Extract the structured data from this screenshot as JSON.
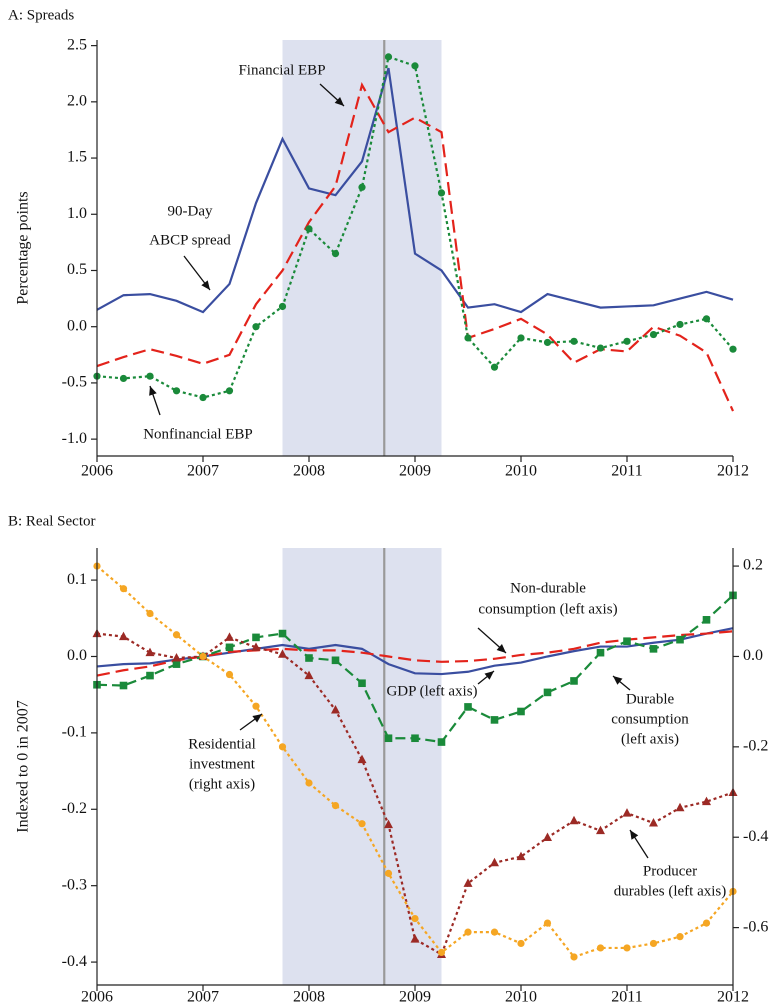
{
  "chart_data": [
    {
      "type": "line",
      "title": "A: Spreads",
      "y_label": "Percentage points",
      "x": [
        2006,
        2006.25,
        2006.5,
        2006.75,
        2007,
        2007.25,
        2007.5,
        2007.75,
        2008,
        2008.25,
        2008.5,
        2008.75,
        2009,
        2009.25,
        2009.5,
        2009.75,
        2010,
        2010.25,
        2010.5,
        2010.75,
        2011,
        2011.25,
        2011.5,
        2011.75,
        2012
      ],
      "xlim": [
        2006,
        2012
      ],
      "xticks": [
        2006,
        2007,
        2008,
        2009,
        2010,
        2011,
        2012
      ],
      "ylim": [
        -1.15,
        2.55
      ],
      "yticks": [
        {
          "value": -1,
          "label": "-1.0"
        },
        -0.5,
        {
          "value": 0,
          "label": "0.0"
        },
        0.5,
        {
          "value": 1,
          "label": "1.0"
        },
        1.5,
        {
          "value": 2,
          "label": "2.0"
        },
        2.5
      ],
      "shade": [
        2007.75,
        2009.25
      ],
      "vline": 2008.71,
      "series": [
        {
          "name": "90-Day ABCP spread",
          "color": "#3a4ea0",
          "dash": "solid",
          "marker": "none",
          "values": [
            0.15,
            0.28,
            0.29,
            0.23,
            0.13,
            0.38,
            1.1,
            1.67,
            1.23,
            1.17,
            1.47,
            2.3,
            0.65,
            0.5,
            0.17,
            0.2,
            0.13,
            0.29,
            0.23,
            0.17,
            0.18,
            0.19,
            0.25,
            0.31,
            0.24
          ]
        },
        {
          "name": "Financial EBP",
          "color": "#e3231b",
          "dash": "long",
          "marker": "none",
          "values": [
            -0.35,
            -0.27,
            -0.2,
            -0.26,
            -0.33,
            -0.25,
            0.2,
            0.5,
            0.93,
            1.25,
            2.15,
            1.73,
            1.86,
            1.73,
            -0.1,
            -0.02,
            0.07,
            -0.07,
            -0.32,
            -0.2,
            -0.22,
            0.0,
            -0.08,
            -0.23,
            -0.75
          ]
        },
        {
          "name": "Nonfinancial EBP",
          "color": "#1a8a3a",
          "dash": "dotted",
          "marker": "circle",
          "values": [
            -0.44,
            -0.46,
            -0.44,
            -0.57,
            -0.63,
            -0.57,
            0.0,
            0.18,
            0.87,
            0.65,
            1.24,
            2.4,
            2.32,
            1.19,
            -0.1,
            -0.36,
            -0.1,
            -0.14,
            -0.13,
            -0.19,
            -0.13,
            -0.07,
            0.02,
            0.07,
            -0.2
          ]
        }
      ],
      "annotations": [
        {
          "text": [
            "Financial EBP"
          ]
        },
        {
          "text": [
            "90-Day",
            "ABCP spread"
          ]
        },
        {
          "text": [
            "Nonfinancial EBP"
          ]
        }
      ]
    },
    {
      "type": "line",
      "title": "B: Real Sector",
      "y_label": "Indexed to 0 in 2007",
      "x": [
        2006,
        2006.25,
        2006.5,
        2006.75,
        2007,
        2007.25,
        2007.5,
        2007.75,
        2008,
        2008.25,
        2008.5,
        2008.75,
        2009,
        2009.25,
        2009.5,
        2009.75,
        2010,
        2010.25,
        2010.5,
        2010.75,
        2011,
        2011.25,
        2011.5,
        2011.75,
        2012
      ],
      "xlim": [
        2006,
        2012
      ],
      "xticks": [
        2006,
        2007,
        2008,
        2009,
        2010,
        2011,
        2012
      ],
      "ylim": [
        -0.43,
        0.142
      ],
      "yticks": [
        0.1,
        {
          "value": 0,
          "label": "0.0"
        },
        -0.1,
        -0.2,
        -0.3,
        -0.4
      ],
      "y2lim": [
        -0.727,
        0.24
      ],
      "y2ticks": [
        0.2,
        {
          "value": 0,
          "label": "0.0"
        },
        -0.2,
        -0.4,
        -0.6
      ],
      "shade": [
        2007.75,
        2009.25
      ],
      "vline": 2008.71,
      "series": [
        {
          "name": "GDP",
          "color": "#3a4ea0",
          "dash": "solid",
          "marker": "none",
          "values": [
            -0.013,
            -0.01,
            -0.009,
            -0.004,
            0,
            0.005,
            0.01,
            0.015,
            0.01,
            0.015,
            0.01,
            -0.01,
            -0.022,
            -0.023,
            -0.02,
            -0.012,
            -0.008,
            0.0,
            0.007,
            0.013,
            0.013,
            0.018,
            0.022,
            0.03,
            0.037
          ]
        },
        {
          "name": "Non-durable consumption",
          "color": "#e3231b",
          "dash": "long",
          "marker": "none",
          "values": [
            -0.025,
            -0.018,
            -0.013,
            -0.005,
            0,
            0.006,
            0.008,
            0.01,
            0.008,
            0.008,
            0.005,
            0.0,
            -0.005,
            -0.007,
            -0.006,
            -0.003,
            0.002,
            0.005,
            0.01,
            0.018,
            0.022,
            0.025,
            0.028,
            0.03,
            0.033
          ]
        },
        {
          "name": "Durable consumption",
          "color": "#1a8a3a",
          "dash": "dashed",
          "marker": "square",
          "values": [
            -0.037,
            -0.038,
            -0.025,
            -0.01,
            0,
            0.012,
            0.025,
            0.03,
            -0.002,
            -0.005,
            -0.035,
            -0.107,
            -0.107,
            -0.112,
            -0.066,
            -0.083,
            -0.072,
            -0.047,
            -0.032,
            0.005,
            0.02,
            0.01,
            0.022,
            0.048,
            0.08
          ]
        },
        {
          "name": "Producer durables",
          "color": "#9c2a25",
          "dash": "dotted",
          "marker": "triangle",
          "values": [
            0.03,
            0.026,
            0.005,
            -0.002,
            0,
            0.025,
            0.012,
            0.003,
            -0.025,
            -0.07,
            -0.135,
            -0.22,
            -0.37,
            -0.39,
            -0.297,
            -0.27,
            -0.262,
            -0.237,
            -0.215,
            -0.228,
            -0.205,
            -0.218,
            -0.198,
            -0.19,
            -0.178
          ]
        },
        {
          "name": "Residential investment",
          "color": "#f5a623",
          "dash": "dotted",
          "marker": "circle",
          "axis": "y2",
          "values": [
            0.2,
            0.15,
            0.095,
            0.048,
            0,
            -0.04,
            -0.11,
            -0.2,
            -0.28,
            -0.33,
            -0.37,
            -0.48,
            -0.58,
            -0.655,
            -0.61,
            -0.61,
            -0.635,
            -0.59,
            -0.665,
            -0.645,
            -0.645,
            -0.635,
            -0.62,
            -0.59,
            -0.52
          ]
        }
      ],
      "annotations": [
        {
          "text": [
            "Non-durable",
            "consumption (left axis)"
          ]
        },
        {
          "text": [
            "GDP (left axis)"
          ]
        },
        {
          "text": [
            "Durable",
            "consumption",
            "(left axis)"
          ]
        },
        {
          "text": [
            "Residential",
            "investment",
            "(right axis)"
          ]
        },
        {
          "text": [
            "Producer",
            "durables (left axis)"
          ]
        }
      ]
    }
  ]
}
